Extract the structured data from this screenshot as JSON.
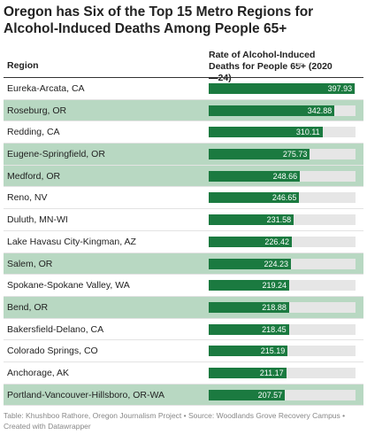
{
  "chart_data": {
    "type": "table-bar",
    "title": "Oregon has Six of the Top 15 Metro Regions for Alcohol-Induced Deaths Among People 65+",
    "columns": [
      "Region",
      "Rate of Alcohol-Induced Deaths for People 65+ (2020—24)"
    ],
    "categories": [
      "Eureka-Arcata, CA",
      "Roseburg, OR",
      "Redding, CA",
      "Eugene-Springfield, OR",
      "Medford, OR",
      "Reno, NV",
      "Duluth, MN-WI",
      "Lake Havasu City-Kingman, AZ",
      "Salem, OR",
      "Spokane-Spokane Valley, WA",
      "Bend, OR",
      "Bakersfield-Delano, CA",
      "Colorado Springs, CO",
      "Anchorage, AK",
      "Portland-Vancouver-Hillsboro, OR-WA"
    ],
    "values": [
      397.93,
      342.88,
      310.11,
      275.73,
      248.66,
      246.65,
      231.58,
      226.42,
      224.23,
      219.24,
      218.88,
      218.45,
      215.19,
      211.17,
      207.57
    ],
    "highlight": [
      false,
      true,
      false,
      true,
      true,
      false,
      false,
      false,
      true,
      false,
      true,
      false,
      false,
      false,
      true
    ],
    "xlim": [
      0,
      400
    ],
    "color": "#1b7a40",
    "highlight_color": "#b8d8c2",
    "source": "Table: Khushboo Rathore, Oregon Journalism Project • Source: Woodlands Grove Recovery Campus • Created with Datawrapper"
  }
}
